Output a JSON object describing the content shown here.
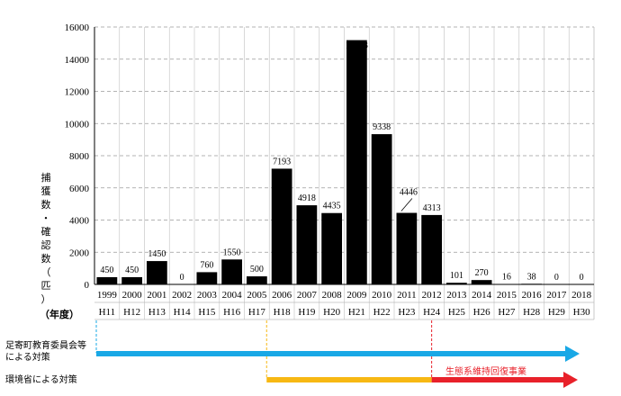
{
  "chart_data": {
    "type": "bar",
    "years": [
      "1999",
      "2000",
      "2001",
      "2002",
      "2003",
      "2004",
      "2005",
      "2006",
      "2007",
      "2008",
      "2009",
      "2010",
      "2011",
      "2012",
      "2013",
      "2014",
      "2015",
      "2016",
      "2017",
      "2018"
    ],
    "eras": [
      "H11",
      "H12",
      "H13",
      "H14",
      "H15",
      "H16",
      "H17",
      "H18",
      "H19",
      "H20",
      "H21",
      "H22",
      "H23",
      "H24",
      "H25",
      "H26",
      "H27",
      "H28",
      "H29",
      "H30"
    ],
    "values": [
      450,
      450,
      1450,
      0,
      760,
      1550,
      500,
      7193,
      4918,
      4435,
      15183,
      9338,
      4446,
      4313,
      101,
      270,
      16,
      38,
      0,
      0
    ],
    "ylim": [
      0,
      16000
    ],
    "yticks": [
      "0",
      "2000",
      "4000",
      "6000",
      "8000",
      "10000",
      "12000",
      "14000",
      "16000"
    ],
    "ylabel_chars": [
      "捕",
      "獲",
      "数",
      "・",
      "確",
      "認",
      "数",
      "（",
      "匹",
      "）"
    ],
    "xlabel": "（年度）",
    "grid": "horizontal-dashed"
  },
  "measures": {
    "row1_label_line1": "足寄町教育委員会等",
    "row1_label_line2": "による対策",
    "row2_label": "環境省による対策",
    "eco_label": "生態系維持回復事業",
    "colors": {
      "blue": "#19a8e6",
      "yellow": "#f7b813",
      "red": "#e8212a",
      "bar": "#000000"
    }
  }
}
